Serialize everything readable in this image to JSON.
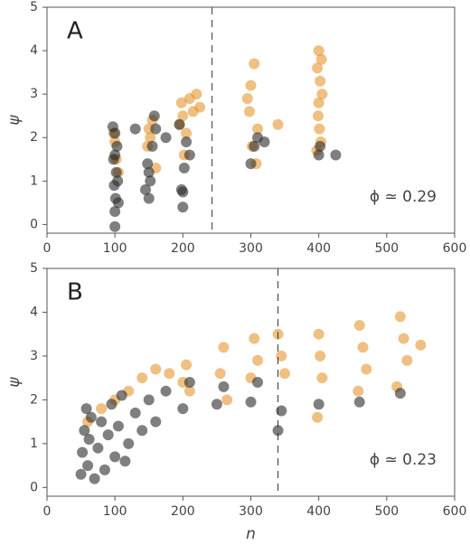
{
  "chart_data": [
    {
      "type": "scatter",
      "label": "A",
      "annotation": "ϕ ≃ 0.29",
      "y_label": "ψ",
      "xlim": [
        0,
        600
      ],
      "ylim": [
        -0.2,
        5
      ],
      "xticks": [
        0,
        100,
        200,
        300,
        400,
        500,
        600
      ],
      "yticks": [
        0,
        1,
        2,
        3,
        4,
        5
      ],
      "vline": 243,
      "alpha": 0.6,
      "series": [
        {
          "color": "#e5962e",
          "x": [
            100,
            102,
            98,
            105,
            150,
            148,
            155,
            160,
            152,
            198,
            200,
            205,
            210,
            202,
            215,
            220,
            195,
            300,
            298,
            305,
            310,
            302,
            295,
            308,
            400,
            398,
            402,
            405,
            400,
            399,
            401,
            403,
            397,
            404,
            340,
            225
          ],
          "values": [
            1.9,
            1.5,
            2.1,
            1.2,
            2.2,
            1.8,
            2.4,
            1.3,
            2.0,
            2.8,
            2.5,
            2.1,
            2.9,
            1.6,
            2.6,
            3.0,
            2.3,
            3.2,
            2.6,
            3.7,
            2.2,
            1.8,
            2.9,
            1.4,
            4.0,
            3.6,
            3.3,
            3.0,
            2.8,
            2.5,
            2.2,
            1.9,
            1.7,
            3.8,
            2.3,
            2.7
          ]
        },
        {
          "color": "#2a2a2a",
          "x": [
            100,
            100,
            101,
            99,
            102,
            98,
            103,
            100,
            97,
            104,
            105,
            100,
            150,
            152,
            148,
            155,
            160,
            145,
            158,
            150,
            200,
            198,
            202,
            205,
            195,
            210,
            200,
            300,
            305,
            310,
            320,
            400,
            402,
            425,
            130,
            175
          ],
          "values": [
            -0.05,
            0.3,
            0.6,
            0.9,
            1.2,
            1.5,
            1.8,
            2.1,
            2.25,
            1.0,
            0.5,
            1.6,
            0.6,
            1.0,
            1.4,
            1.8,
            2.2,
            0.8,
            2.5,
            1.2,
            0.4,
            0.8,
            1.3,
            1.9,
            2.3,
            1.6,
            0.75,
            1.4,
            1.8,
            2.0,
            1.9,
            1.6,
            1.8,
            1.6,
            2.2,
            2.0
          ]
        }
      ]
    },
    {
      "type": "scatter",
      "label": "B",
      "annotation": "ϕ ≃ 0.23",
      "y_label": "ψ",
      "x_label": "n",
      "xlim": [
        0,
        600
      ],
      "ylim": [
        -0.2,
        5
      ],
      "xticks": [
        0,
        100,
        200,
        300,
        400,
        500,
        600
      ],
      "yticks": [
        0,
        1,
        2,
        3,
        4,
        5
      ],
      "vline": 340,
      "alpha": 0.6,
      "series": [
        {
          "color": "#e5962e",
          "x": [
            60,
            80,
            100,
            120,
            140,
            160,
            200,
            205,
            210,
            255,
            260,
            265,
            300,
            305,
            310,
            340,
            345,
            350,
            400,
            402,
            405,
            398,
            460,
            465,
            470,
            458,
            520,
            525,
            530,
            515,
            550,
            180
          ],
          "values": [
            1.5,
            1.8,
            2.0,
            2.2,
            2.5,
            2.7,
            2.4,
            2.8,
            2.2,
            2.6,
            3.2,
            2.0,
            2.5,
            3.4,
            2.9,
            3.5,
            3.0,
            2.6,
            3.5,
            3.0,
            2.5,
            1.6,
            3.7,
            3.2,
            2.7,
            2.2,
            3.9,
            3.4,
            2.9,
            2.3,
            3.25,
            2.6
          ]
        },
        {
          "color": "#2a2a2a",
          "x": [
            50,
            52,
            55,
            58,
            60,
            62,
            65,
            70,
            75,
            80,
            85,
            90,
            95,
            100,
            105,
            110,
            115,
            120,
            130,
            140,
            150,
            160,
            175,
            200,
            210,
            250,
            260,
            300,
            310,
            340,
            345,
            400,
            460,
            520
          ],
          "values": [
            0.3,
            0.8,
            1.3,
            1.8,
            0.5,
            1.1,
            1.6,
            0.2,
            0.9,
            1.5,
            0.4,
            1.2,
            1.9,
            0.7,
            1.4,
            2.1,
            0.6,
            1.0,
            1.7,
            1.3,
            2.0,
            1.5,
            2.2,
            1.8,
            2.4,
            1.9,
            2.3,
            1.95,
            2.4,
            1.3,
            1.75,
            1.9,
            1.95,
            2.15
          ]
        }
      ]
    }
  ]
}
